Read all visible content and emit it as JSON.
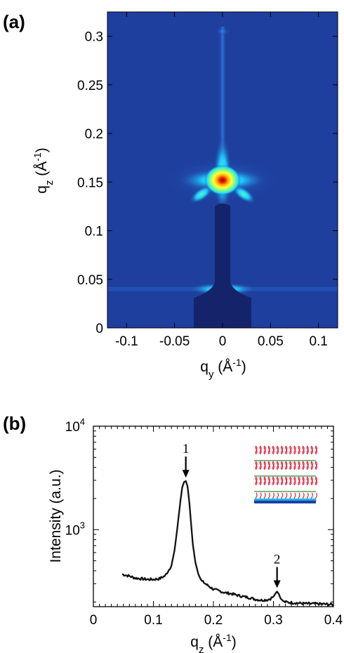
{
  "panel_a": {
    "label": "(a)"
  },
  "panel_b": {
    "label": "(b)"
  },
  "chart_data": [
    {
      "type": "heatmap",
      "xlabel": "q_y (Å^-1)",
      "ylabel": "q_z (Å^-1)",
      "xlim": [
        -0.12,
        0.12
      ],
      "ylim": [
        0,
        0.325
      ],
      "x_ticks": [
        -0.1,
        -0.05,
        0,
        0.05,
        0.1
      ],
      "x_tick_labels": [
        "-0.1",
        "-0.05",
        "0",
        "0.05",
        "0.1"
      ],
      "y_ticks": [
        0,
        0.05,
        0.1,
        0.15,
        0.2,
        0.25,
        0.3
      ],
      "y_tick_labels": [
        "0",
        "0.05",
        "0.1",
        "0.15",
        "0.2",
        "0.25",
        "0.3"
      ],
      "features": {
        "bragg_peak_1": {
          "qy": 0,
          "qz": 0.152
        },
        "bragg_peak_2": {
          "qy": 0,
          "qz": 0.305
        },
        "beamstop_width_qy": 0.016,
        "beamstop_base_width_qy": 0.06,
        "beamstop_top_qz": 0.128,
        "yoneda_qz": 0.04
      },
      "colors": {
        "background": "#1e3f9e",
        "beamstop": "#15236a",
        "peak_core": "#a40000"
      }
    },
    {
      "type": "line",
      "xlabel": "q_z (Å^-1)",
      "ylabel": "Intensity (a.u.)",
      "xlim": [
        0,
        0.4
      ],
      "ylim": [
        180,
        10000
      ],
      "y_scale": "log",
      "x_ticks": [
        0,
        0.1,
        0.2,
        0.3,
        0.4
      ],
      "x_tick_labels": [
        "0",
        "0.1",
        "0.2",
        "0.3",
        "0.4"
      ],
      "y_tick_labels": [
        {
          "base": "10",
          "exp": "3",
          "value": 1000
        },
        {
          "base": "10",
          "exp": "4",
          "value": 10000
        }
      ],
      "annotations": [
        {
          "text": "1",
          "x": 0.154,
          "y": 2900
        },
        {
          "text": "2",
          "x": 0.306,
          "y": 248
        }
      ],
      "series": [
        {
          "x": [
            0.048,
            0.06,
            0.07,
            0.08,
            0.09,
            0.1,
            0.11,
            0.12,
            0.13,
            0.135,
            0.14,
            0.145,
            0.148,
            0.151,
            0.154,
            0.157,
            0.16,
            0.163,
            0.166,
            0.17,
            0.175,
            0.18,
            0.19,
            0.2,
            0.21,
            0.22,
            0.23,
            0.24,
            0.25,
            0.26,
            0.27,
            0.28,
            0.29,
            0.295,
            0.3,
            0.303,
            0.306,
            0.309,
            0.312,
            0.318,
            0.33,
            0.34,
            0.35,
            0.36,
            0.37,
            0.38,
            0.39,
            0.4
          ],
          "y": [
            370,
            355,
            340,
            335,
            330,
            330,
            335,
            360,
            450,
            620,
            1050,
            1900,
            2550,
            2880,
            2950,
            2600,
            1800,
            1100,
            700,
            480,
            370,
            320,
            290,
            265,
            255,
            245,
            240,
            232,
            225,
            220,
            212,
            208,
            210,
            215,
            225,
            240,
            252,
            238,
            215,
            200,
            197,
            195,
            193,
            192,
            192,
            191,
            190,
            188
          ]
        }
      ]
    }
  ]
}
